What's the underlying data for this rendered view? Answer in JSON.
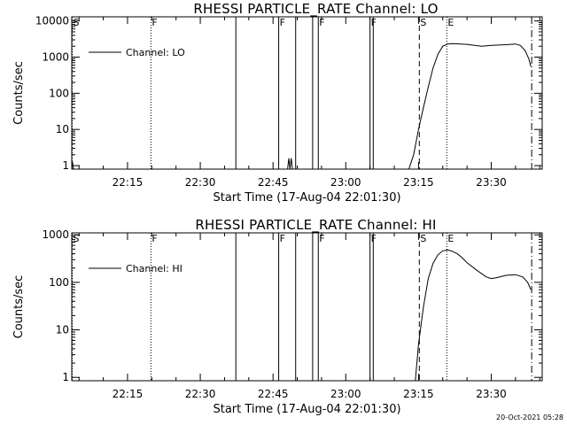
{
  "footer_timestamp": "20-Oct-2021 05:28",
  "chart_data": [
    {
      "type": "line",
      "scale_y": "log",
      "title": "RHESSI PARTICLE_RATE Channel: LO",
      "xlabel": "Start Time (17-Aug-04 22:01:30)",
      "ylabel": "Counts/sec",
      "legend": {
        "position": "top-left",
        "entries": [
          "Channel: LO"
        ]
      },
      "grid": false,
      "xlim": [
        "22:03:30",
        "23:40:30"
      ],
      "ylim": [
        0.8,
        13000
      ],
      "x_ticks": [
        "22:15",
        "22:30",
        "22:45",
        "23:00",
        "23:15",
        "23:30"
      ],
      "y_ticks": [
        "1",
        "10",
        "100",
        "1000",
        "10000"
      ],
      "markers": [
        {
          "time": "22:03:36",
          "style": "dotted",
          "label": "S"
        },
        {
          "time": "22:19:50",
          "style": "dotted",
          "label": "F"
        },
        {
          "time": "22:37:20",
          "style": "solid",
          "label": ""
        },
        {
          "time": "22:46:10",
          "style": "solid",
          "label": "F"
        },
        {
          "time": "22:49:40",
          "style": "solid",
          "label": ""
        },
        {
          "time": "22:53:10",
          "style": "solid",
          "label": ""
        },
        {
          "time": "22:54:20",
          "style": "solid",
          "label": "F"
        },
        {
          "time": "23:05:00",
          "style": "solid",
          "label": "F"
        },
        {
          "time": "23:05:40",
          "style": "solid",
          "label": ""
        },
        {
          "time": "23:15:10",
          "style": "dashed",
          "label": "S"
        },
        {
          "time": "23:20:50",
          "style": "dotted",
          "label": "E"
        },
        {
          "time": "23:38:20",
          "style": "dashdot",
          "label": ""
        }
      ],
      "series": [
        {
          "name": "Channel: LO",
          "segments": [
            {
              "x": [
                "22:03:31",
                "22:03:38",
                "22:03:45",
                "22:03:52"
              ],
              "y": [
                0.8,
                1.3,
                1.0,
                0.8
              ]
            },
            {
              "x": [
                "22:48:00",
                "22:48:15",
                "22:48:30",
                "22:48:45",
                "22:49:00"
              ],
              "y": [
                0.8,
                1.6,
                0.8,
                1.6,
                0.8
              ]
            },
            {
              "x": [
                "23:13:00",
                "23:14:00",
                "23:15:00",
                "23:16:00",
                "23:17:00",
                "23:18:00",
                "23:19:00",
                "23:20:00",
                "23:21:00",
                "23:22:00",
                "23:25:00",
                "23:28:00",
                "23:30:00",
                "23:33:00",
                "23:35:00",
                "23:36:00",
                "23:37:00",
                "23:37:45",
                "23:38:10"
              ],
              "y": [
                0.8,
                2.0,
                10,
                40,
                150,
                500,
                1200,
                2000,
                2300,
                2350,
                2250,
                2000,
                2100,
                2200,
                2300,
                2100,
                1500,
                900,
                550
              ]
            }
          ]
        }
      ]
    },
    {
      "type": "line",
      "scale_y": "log",
      "title": "RHESSI PARTICLE_RATE Channel: HI",
      "xlabel": "Start Time (17-Aug-04 22:01:30)",
      "ylabel": "Counts/sec",
      "legend": {
        "position": "top-left",
        "entries": [
          "Channel: HI"
        ]
      },
      "grid": false,
      "xlim": [
        "22:03:30",
        "23:40:30"
      ],
      "ylim": [
        0.85,
        1100
      ],
      "x_ticks": [
        "22:15",
        "22:30",
        "22:45",
        "23:00",
        "23:15",
        "23:30"
      ],
      "y_ticks": [
        "1",
        "10",
        "100",
        "1000"
      ],
      "markers": [
        {
          "time": "22:03:36",
          "style": "dotted",
          "label": "S"
        },
        {
          "time": "22:19:50",
          "style": "dotted",
          "label": "F"
        },
        {
          "time": "22:37:20",
          "style": "solid",
          "label": ""
        },
        {
          "time": "22:46:10",
          "style": "solid",
          "label": "F"
        },
        {
          "time": "22:49:40",
          "style": "solid",
          "label": ""
        },
        {
          "time": "22:53:10",
          "style": "solid",
          "label": ""
        },
        {
          "time": "22:54:20",
          "style": "solid",
          "label": "F"
        },
        {
          "time": "23:05:00",
          "style": "solid",
          "label": "F"
        },
        {
          "time": "23:05:40",
          "style": "solid",
          "label": ""
        },
        {
          "time": "23:15:10",
          "style": "dashed",
          "label": "S"
        },
        {
          "time": "23:20:50",
          "style": "dotted",
          "label": "E"
        },
        {
          "time": "23:38:20",
          "style": "dashdot",
          "label": ""
        }
      ],
      "series": [
        {
          "name": "Channel: HI",
          "segments": [
            {
              "x": [
                "23:14:20",
                "23:15:00",
                "23:16:00",
                "23:17:00",
                "23:18:00",
                "23:19:00",
                "23:20:00",
                "23:21:00",
                "23:22:00",
                "23:23:00",
                "23:24:00",
                "23:25:00",
                "23:27:00",
                "23:29:00",
                "23:30:00",
                "23:31:00",
                "23:33:00",
                "23:35:00",
                "23:36:30",
                "23:37:30",
                "23:38:10"
              ],
              "y": [
                0.85,
                5,
                30,
                120,
                250,
                380,
                460,
                480,
                450,
                400,
                330,
                260,
                180,
                130,
                120,
                125,
                140,
                145,
                130,
                100,
                70
              ]
            }
          ]
        }
      ]
    }
  ]
}
